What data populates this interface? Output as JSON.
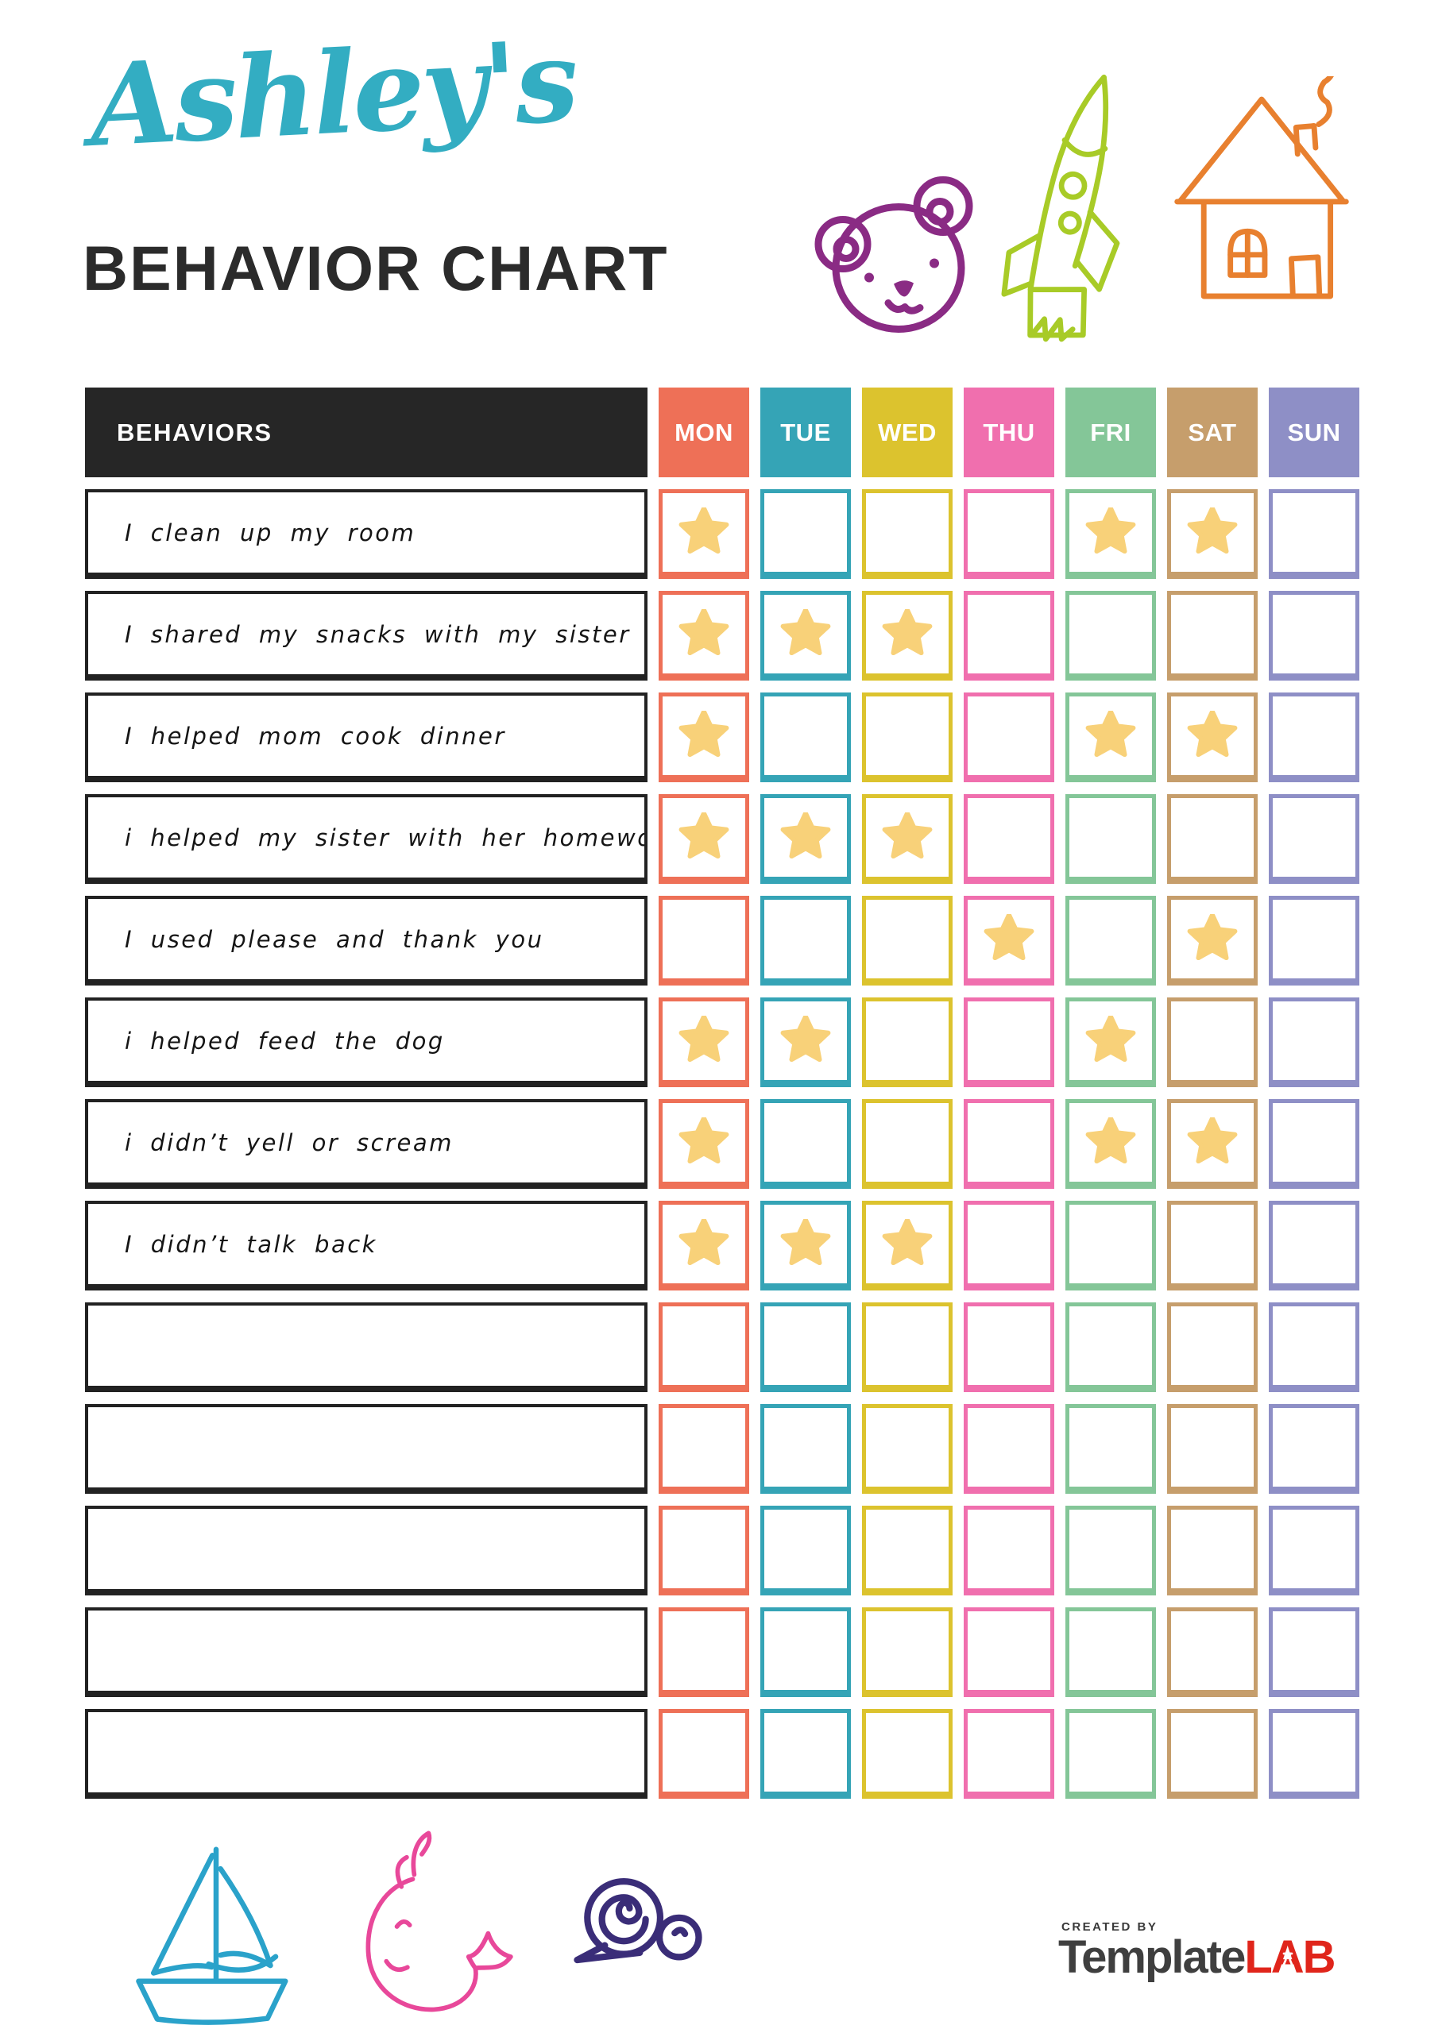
{
  "header": {
    "name_script": "Ashley's",
    "title": "BEHAVIOR CHART",
    "accent_color": "#33adc2",
    "title_color": "#2b2b2b",
    "icons": [
      {
        "name": "bear-icon",
        "color": "#8a2b84"
      },
      {
        "name": "rocket-icon",
        "color": "#a8cb27"
      },
      {
        "name": "house-icon",
        "color": "#e8802f"
      }
    ]
  },
  "table": {
    "behaviors_header": "BEHAVIORS",
    "header_bg": "#262626",
    "star_color": "#f8d179",
    "days": [
      {
        "label": "MON",
        "color": "#ee7057"
      },
      {
        "label": "TUE",
        "color": "#35a4b6"
      },
      {
        "label": "WED",
        "color": "#dcc32e"
      },
      {
        "label": "THU",
        "color": "#f06fae"
      },
      {
        "label": "FRI",
        "color": "#84c698"
      },
      {
        "label": "SAT",
        "color": "#c69e6c"
      },
      {
        "label": "SUN",
        "color": "#8e8fc6"
      }
    ],
    "rows": [
      {
        "label": "I clean up my room",
        "stars": [
          "MON",
          "FRI",
          "SAT"
        ]
      },
      {
        "label": "I shared my snacks with my sister",
        "stars": [
          "MON",
          "TUE",
          "WED"
        ]
      },
      {
        "label": "I helped mom cook dinner",
        "stars": [
          "MON",
          "FRI",
          "SAT"
        ]
      },
      {
        "label": "i helped my sister with her homework",
        "stars": [
          "MON",
          "TUE",
          "WED"
        ]
      },
      {
        "label": "I used please and thank you",
        "stars": [
          "THU",
          "SAT"
        ]
      },
      {
        "label": "i helped feed the dog",
        "stars": [
          "MON",
          "TUE",
          "FRI"
        ]
      },
      {
        "label": "i didn’t yell or scream",
        "stars": [
          "MON",
          "FRI",
          "SAT"
        ]
      },
      {
        "label": "I didn’t talk back",
        "stars": [
          "MON",
          "TUE",
          "WED"
        ]
      },
      {
        "label": "",
        "stars": []
      },
      {
        "label": "",
        "stars": []
      },
      {
        "label": "",
        "stars": []
      },
      {
        "label": "",
        "stars": []
      },
      {
        "label": "",
        "stars": []
      }
    ]
  },
  "footer": {
    "icons": [
      {
        "name": "sailboat-icon",
        "color": "#2aa2ca"
      },
      {
        "name": "whale-icon",
        "color": "#e8489a"
      },
      {
        "name": "snail-icon",
        "color": "#3a2d78"
      }
    ],
    "logo": {
      "created_by": "CREATED BY",
      "brand_dark": "Template",
      "lab_letters": [
        "L",
        "A",
        "B"
      ],
      "brand_dark_color": "#3f3f3f",
      "brand_red_color": "#e0251b"
    }
  }
}
